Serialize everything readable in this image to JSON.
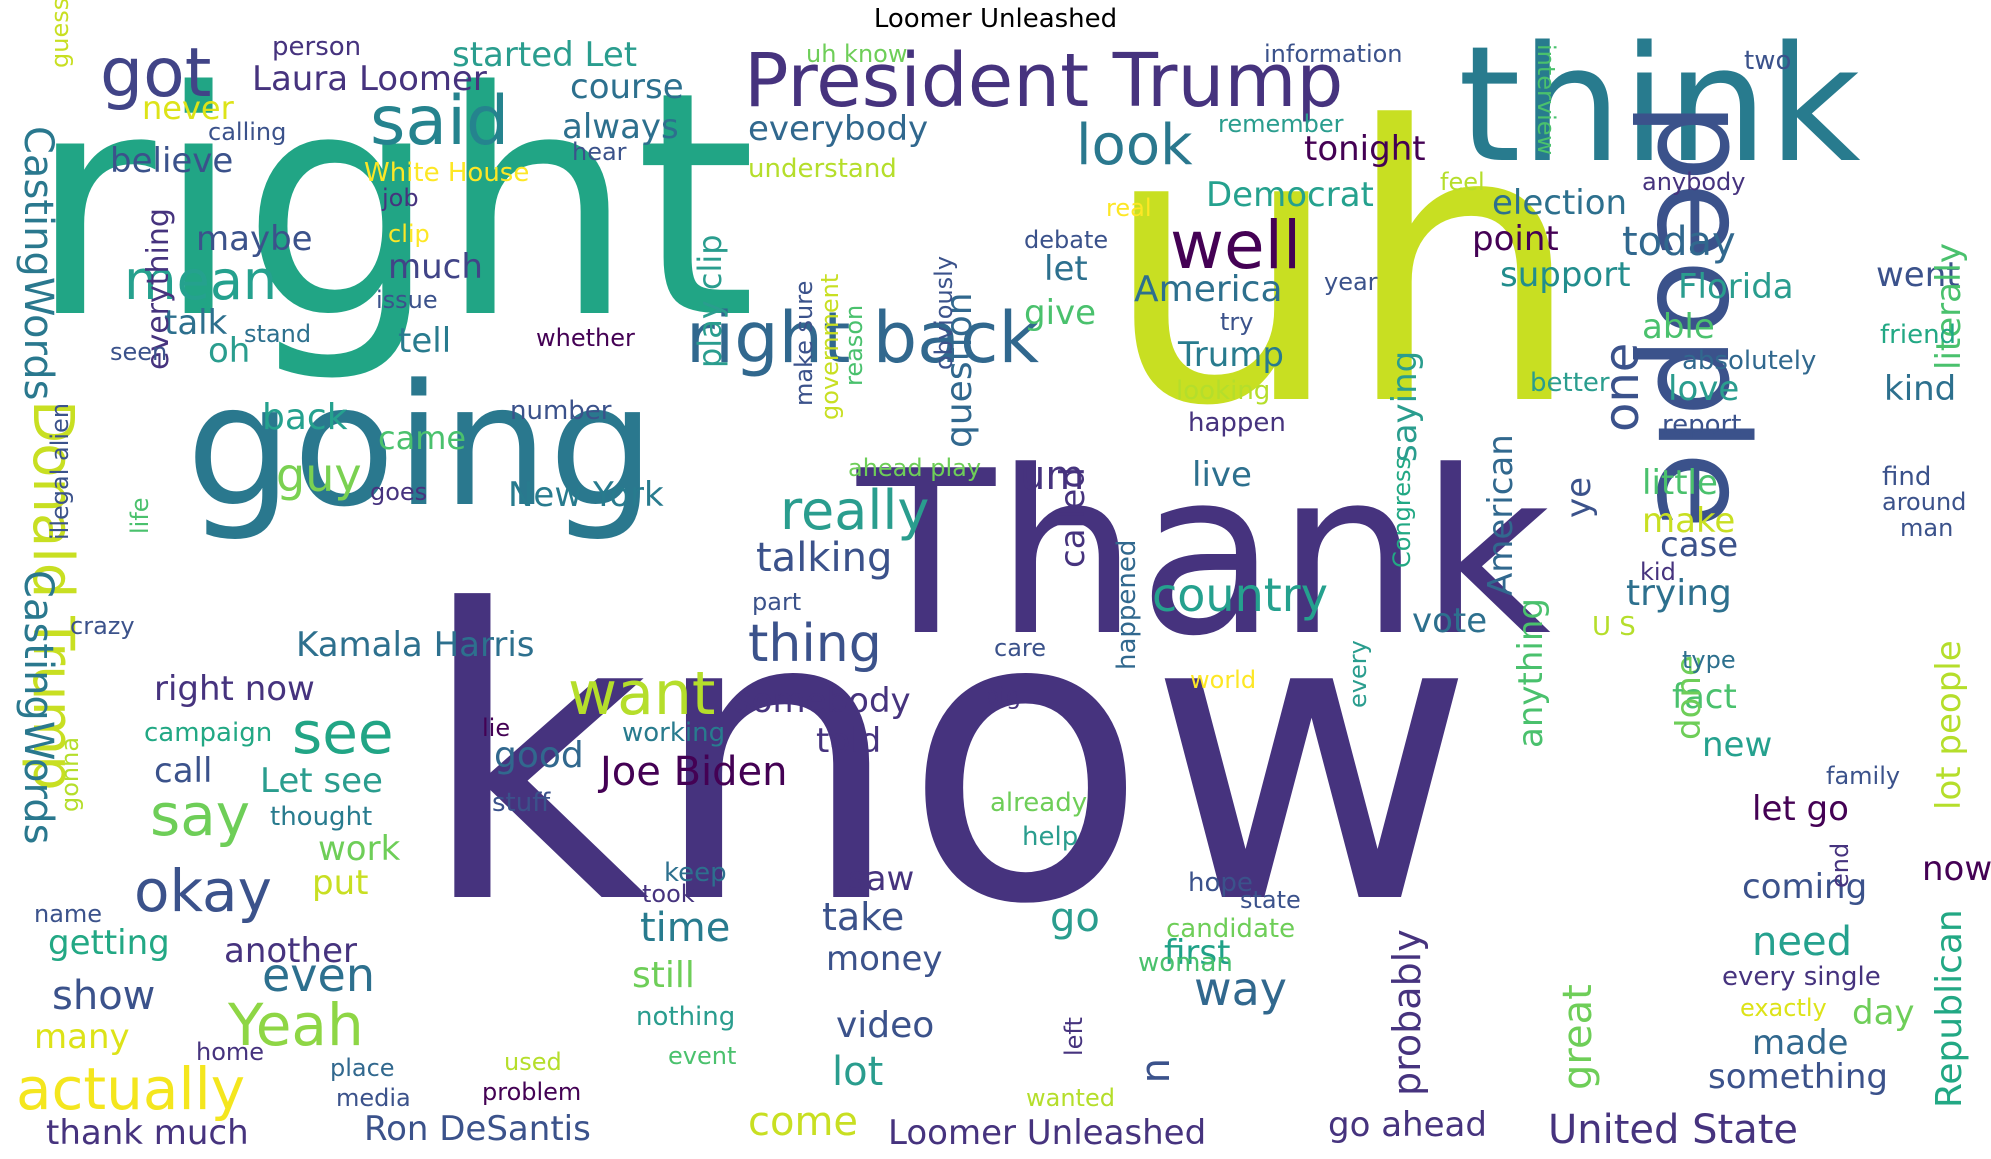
{
  "title": "Loomer Unleashed",
  "palette": [
    "#440154",
    "#46327e",
    "#365c8d",
    "#277f8e",
    "#1fa187",
    "#4ac16d",
    "#a0da39",
    "#c7e01d",
    "#fde725"
  ],
  "words": [
    {
      "text": "know",
      "color": "#46337e"
    },
    {
      "text": "uh",
      "color": "#c8df22"
    },
    {
      "text": "right",
      "color": "#21a585"
    },
    {
      "text": "Thank",
      "color": "#46337e"
    },
    {
      "text": "think",
      "color": "#287b8e"
    },
    {
      "text": "going",
      "color": "#2a788e"
    },
    {
      "text": "people",
      "color": "#3b528b"
    },
    {
      "text": "President Trump",
      "color": "#46337e"
    },
    {
      "text": "right back",
      "color": "#31688e"
    },
    {
      "text": "said",
      "color": "#25838e"
    },
    {
      "text": "got",
      "color": "#414487"
    },
    {
      "text": "well",
      "color": "#440154"
    },
    {
      "text": "look",
      "color": "#2a788e"
    },
    {
      "text": "mean",
      "color": "#25a18e"
    },
    {
      "text": "want",
      "color": "#b5de2b"
    },
    {
      "text": "actually",
      "color": "#f4e61e"
    },
    {
      "text": "Yeah",
      "color": "#8ed645"
    },
    {
      "text": "see",
      "color": "#21a585"
    },
    {
      "text": "say",
      "color": "#6ece58"
    },
    {
      "text": "okay",
      "color": "#3b528b"
    },
    {
      "text": "Donald Trump",
      "color": "#c8df22"
    },
    {
      "text": "CastingWords",
      "color": "#2a788e"
    },
    {
      "text": "CastingWords",
      "color": "#2a788e"
    },
    {
      "text": "really",
      "color": "#2a9d8e"
    },
    {
      "text": "country",
      "color": "#25a18e"
    },
    {
      "text": "thing",
      "color": "#3b528b"
    },
    {
      "text": "Joe Biden",
      "color": "#440154"
    },
    {
      "text": "one",
      "color": "#3b528b"
    },
    {
      "text": "even",
      "color": "#2d708e"
    },
    {
      "text": "way",
      "color": "#31688e"
    },
    {
      "text": "guy",
      "color": "#7ad151"
    },
    {
      "text": "Laura Loomer",
      "color": "#46337e"
    },
    {
      "text": "started Let",
      "color": "#2a9d8e"
    },
    {
      "text": "course",
      "color": "#2d708e"
    },
    {
      "text": "believe",
      "color": "#3b528b"
    },
    {
      "text": "never",
      "color": "#dde318"
    },
    {
      "text": "everybody",
      "color": "#31688e"
    },
    {
      "text": "always",
      "color": "#2d708e"
    },
    {
      "text": "tonight",
      "color": "#440154"
    },
    {
      "text": "Democrat",
      "color": "#25a18e"
    },
    {
      "text": "election",
      "color": "#2d708e"
    },
    {
      "text": "point",
      "color": "#440154"
    },
    {
      "text": "today",
      "color": "#31688e"
    },
    {
      "text": "support",
      "color": "#228d8d"
    },
    {
      "text": "Florida",
      "color": "#2a9d8e"
    },
    {
      "text": "America",
      "color": "#2d708e"
    },
    {
      "text": "let",
      "color": "#2d708e"
    },
    {
      "text": "give",
      "color": "#4ac16d"
    },
    {
      "text": "much",
      "color": "#414487"
    },
    {
      "text": "maybe",
      "color": "#3b528b"
    },
    {
      "text": "talk",
      "color": "#2d708e"
    },
    {
      "text": "tell",
      "color": "#287b8e"
    },
    {
      "text": "oh",
      "color": "#2a9d8e"
    },
    {
      "text": "back",
      "color": "#25a18e"
    },
    {
      "text": "came",
      "color": "#4ac16d"
    },
    {
      "text": "New York",
      "color": "#287b8e"
    },
    {
      "text": "talking",
      "color": "#3b528b"
    },
    {
      "text": "Kamala Harris",
      "color": "#2d708e"
    },
    {
      "text": "right now",
      "color": "#46337e"
    },
    {
      "text": "somebody",
      "color": "#46337e"
    },
    {
      "text": "told",
      "color": "#46337e"
    },
    {
      "text": "good",
      "color": "#31688e"
    },
    {
      "text": "call",
      "color": "#3b528b"
    },
    {
      "text": "Let see",
      "color": "#2a9d8e"
    },
    {
      "text": "work",
      "color": "#6ece58"
    },
    {
      "text": "put",
      "color": "#c8df22"
    },
    {
      "text": "getting",
      "color": "#22a884"
    },
    {
      "text": "another",
      "color": "#46337e"
    },
    {
      "text": "show",
      "color": "#3b528b"
    },
    {
      "text": "many",
      "color": "#dde318"
    },
    {
      "text": "thank much",
      "color": "#46337e"
    },
    {
      "text": "Ron DeSantis",
      "color": "#3b528b"
    },
    {
      "text": "come",
      "color": "#c8df22"
    },
    {
      "text": "Loomer Unleashed",
      "color": "#46337e"
    },
    {
      "text": "go ahead",
      "color": "#46337e"
    },
    {
      "text": "United State",
      "color": "#46337e"
    },
    {
      "text": "something",
      "color": "#3b528b"
    },
    {
      "text": "made",
      "color": "#31688e"
    },
    {
      "text": "day",
      "color": "#6ece58"
    },
    {
      "text": "need",
      "color": "#25a18e"
    },
    {
      "text": "coming",
      "color": "#3b528b"
    },
    {
      "text": "now",
      "color": "#440154"
    },
    {
      "text": "let go",
      "color": "#440154"
    },
    {
      "text": "new",
      "color": "#25a18e"
    },
    {
      "text": "fact",
      "color": "#4ac16d"
    },
    {
      "text": "case",
      "color": "#3b528b"
    },
    {
      "text": "trying",
      "color": "#2d708e"
    },
    {
      "text": "make",
      "color": "#c8df22"
    },
    {
      "text": "little",
      "color": "#4ac16d"
    },
    {
      "text": "able",
      "color": "#4ac16d"
    },
    {
      "text": "love",
      "color": "#2a9d8e"
    },
    {
      "text": "kind",
      "color": "#2d708e"
    },
    {
      "text": "went",
      "color": "#3b528b"
    },
    {
      "text": "vote",
      "color": "#2d708e"
    },
    {
      "text": "live",
      "color": "#2d708e"
    },
    {
      "text": "Trump",
      "color": "#287b8e"
    },
    {
      "text": "um",
      "color": "#46337e"
    },
    {
      "text": "go",
      "color": "#2a9d8e"
    },
    {
      "text": "time",
      "color": "#287b8e"
    },
    {
      "text": "take",
      "color": "#3b528b"
    },
    {
      "text": "saw",
      "color": "#46337e"
    },
    {
      "text": "money",
      "color": "#3b528b"
    },
    {
      "text": "first",
      "color": "#1fa187"
    },
    {
      "text": "still",
      "color": "#6ece58"
    },
    {
      "text": "video",
      "color": "#3b528b"
    },
    {
      "text": "lot",
      "color": "#2a9d8e"
    },
    {
      "text": "nothing",
      "color": "#2a9d8e"
    },
    {
      "text": "everything",
      "color": "#46337e"
    },
    {
      "text": "question",
      "color": "#31688e"
    },
    {
      "text": "play clip",
      "color": "#2a9d8e"
    },
    {
      "text": "called",
      "color": "#46337e"
    },
    {
      "text": "saying",
      "color": "#2a9d8e"
    },
    {
      "text": "ye",
      "color": "#3b528b"
    },
    {
      "text": "American",
      "color": "#31688e"
    },
    {
      "text": "anything",
      "color": "#4ac16d"
    },
    {
      "text": "great",
      "color": "#6ece58"
    },
    {
      "text": "probably",
      "color": "#46337e"
    },
    {
      "text": "done",
      "color": "#6ece58"
    },
    {
      "text": "lot people",
      "color": "#b5de2b"
    },
    {
      "text": "Republican",
      "color": "#22a884"
    },
    {
      "text": "literally",
      "color": "#4ac16d"
    },
    {
      "text": "u",
      "color": "#3b528b"
    },
    {
      "text": "person",
      "color": "#46337e"
    },
    {
      "text": "information",
      "color": "#3b528b"
    },
    {
      "text": "two",
      "color": "#3b528b"
    },
    {
      "text": "uh know",
      "color": "#6ece58"
    },
    {
      "text": "guess",
      "color": "#c8df22"
    },
    {
      "text": "calling",
      "color": "#3b528b"
    },
    {
      "text": "hear",
      "color": "#3b528b"
    },
    {
      "text": "White House",
      "color": "#fde725"
    },
    {
      "text": "understand",
      "color": "#b5de2b"
    },
    {
      "text": "remember",
      "color": "#2a9d8e"
    },
    {
      "text": "interview",
      "color": "#4ac16d"
    },
    {
      "text": "anybody",
      "color": "#46337e"
    },
    {
      "text": "job",
      "color": "#46337e"
    },
    {
      "text": "clip",
      "color": "#fde725"
    },
    {
      "text": "issue",
      "color": "#3b528b"
    },
    {
      "text": "stand",
      "color": "#2d708e"
    },
    {
      "text": "seen",
      "color": "#3b528b"
    },
    {
      "text": "whether",
      "color": "#440154"
    },
    {
      "text": "real",
      "color": "#fde725"
    },
    {
      "text": "feel",
      "color": "#b5de2b"
    },
    {
      "text": "debate",
      "color": "#3b528b"
    },
    {
      "text": "year",
      "color": "#3b528b"
    },
    {
      "text": "try",
      "color": "#3b528b"
    },
    {
      "text": "looking",
      "color": "#b5de2b"
    },
    {
      "text": "happen",
      "color": "#46337e"
    },
    {
      "text": "better",
      "color": "#2a9d8e"
    },
    {
      "text": "report",
      "color": "#3b528b"
    },
    {
      "text": "absolutely",
      "color": "#31688e"
    },
    {
      "text": "friend",
      "color": "#22a884"
    },
    {
      "text": "find",
      "color": "#3b528b"
    },
    {
      "text": "around",
      "color": "#3b528b"
    },
    {
      "text": "man",
      "color": "#3b528b"
    },
    {
      "text": "kid",
      "color": "#46337e"
    },
    {
      "text": "U S",
      "color": "#b5de2b"
    },
    {
      "text": "type",
      "color": "#2d708e"
    },
    {
      "text": "family",
      "color": "#3b528b"
    },
    {
      "text": "end",
      "color": "#46337e"
    },
    {
      "text": "every single",
      "color": "#46337e"
    },
    {
      "text": "exactly",
      "color": "#dde318"
    },
    {
      "text": "Congress",
      "color": "#22a884"
    },
    {
      "text": "every",
      "color": "#2a9d8e"
    },
    {
      "text": "number",
      "color": "#3b528b"
    },
    {
      "text": "goes",
      "color": "#46337e"
    },
    {
      "text": "life",
      "color": "#4ac16d"
    },
    {
      "text": "illegal alien",
      "color": "#3b528b"
    },
    {
      "text": "crazy",
      "color": "#3b528b"
    },
    {
      "text": "part",
      "color": "#3b528b"
    },
    {
      "text": "care",
      "color": "#3b528b"
    },
    {
      "text": "big",
      "color": "#46337e"
    },
    {
      "text": "world",
      "color": "#fde725"
    },
    {
      "text": "lie",
      "color": "#440154"
    },
    {
      "text": "working",
      "color": "#287b8e"
    },
    {
      "text": "campaign",
      "color": "#22a884"
    },
    {
      "text": "gonna",
      "color": "#b5de2b"
    },
    {
      "text": "thought",
      "color": "#287b8e"
    },
    {
      "text": "stuff",
      "color": "#3b528b"
    },
    {
      "text": "already",
      "color": "#6ece58"
    },
    {
      "text": "help",
      "color": "#2a9d8e"
    },
    {
      "text": "happened",
      "color": "#31688e"
    },
    {
      "text": "keep",
      "color": "#2d708e"
    },
    {
      "text": "took",
      "color": "#46337e"
    },
    {
      "text": "name",
      "color": "#3b528b"
    },
    {
      "text": "woman",
      "color": "#4ac16d"
    },
    {
      "text": "hope",
      "color": "#3b528b"
    },
    {
      "text": "state",
      "color": "#3b528b"
    },
    {
      "text": "candidate",
      "color": "#6ece58"
    },
    {
      "text": "home",
      "color": "#46337e"
    },
    {
      "text": "place",
      "color": "#31688e"
    },
    {
      "text": "media",
      "color": "#3b528b"
    },
    {
      "text": "used",
      "color": "#b5de2b"
    },
    {
      "text": "problem",
      "color": "#440154"
    },
    {
      "text": "event",
      "color": "#4ac16d"
    },
    {
      "text": "left",
      "color": "#46337e"
    },
    {
      "text": "wanted",
      "color": "#b5de2b"
    },
    {
      "text": "ahead play",
      "color": "#6ece58"
    },
    {
      "text": "make sure",
      "color": "#3b528b"
    },
    {
      "text": "government",
      "color": "#c8df22"
    },
    {
      "text": "reason",
      "color": "#4ac16d"
    },
    {
      "text": "obviously",
      "color": "#3b528b"
    }
  ]
}
